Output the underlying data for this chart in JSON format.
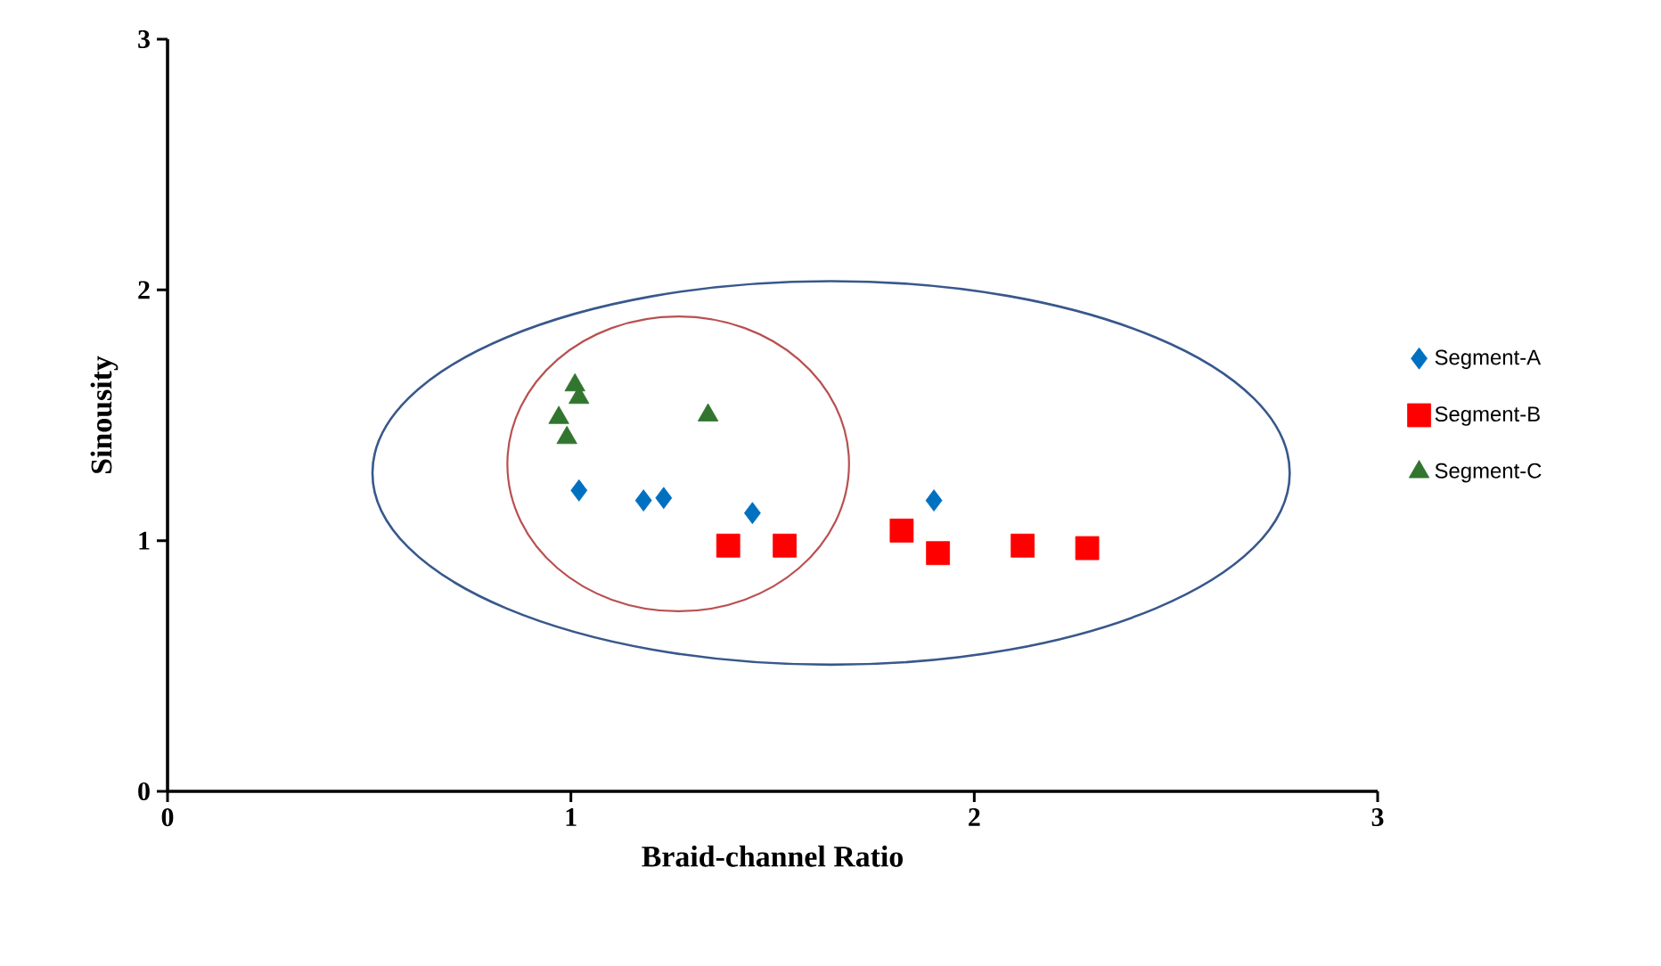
{
  "chart_data": {
    "type": "scatter",
    "xlabel": "Braid-channel Ratio",
    "ylabel": "Sinousity",
    "xlim": [
      0,
      3
    ],
    "ylim": [
      0,
      3
    ],
    "xticks": [
      0,
      1,
      2,
      3
    ],
    "yticks": [
      0,
      1,
      2,
      3
    ],
    "grid": false,
    "legend": "right",
    "series": [
      {
        "name": "Segment-A",
        "color": "#0070c0",
        "marker": "diamond",
        "x": [
          1.02,
          1.18,
          1.23,
          1.45,
          1.9
        ],
        "values": [
          1.2,
          1.16,
          1.17,
          1.11,
          1.16
        ]
      },
      {
        "name": "Segment-B",
        "color": "#ff0000",
        "marker": "square",
        "x": [
          1.39,
          1.53,
          1.82,
          1.91,
          2.12,
          2.28
        ],
        "values": [
          0.98,
          0.98,
          1.04,
          0.95,
          0.98,
          0.97
        ]
      },
      {
        "name": "Segment-C",
        "color": "#31752f",
        "marker": "triangle",
        "x": [
          1.01,
          1.02,
          0.97,
          0.99,
          1.34
        ],
        "values": [
          1.62,
          1.57,
          1.49,
          1.41,
          1.5
        ]
      }
    ]
  }
}
